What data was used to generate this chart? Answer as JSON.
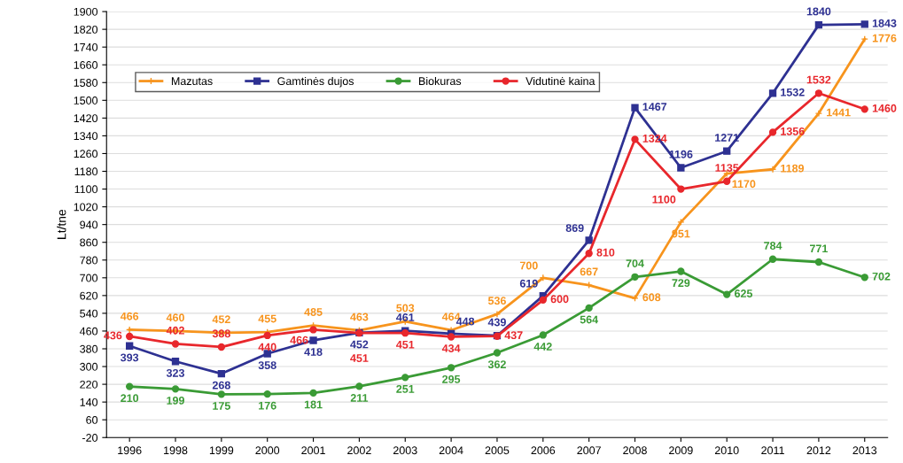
{
  "chart_data": {
    "type": "line",
    "ylabel": "Lt/tne",
    "categories": [
      "1996",
      "1998",
      "1999",
      "2000",
      "2001",
      "2002",
      "2003",
      "2004",
      "2005",
      "2006",
      "2007",
      "2008",
      "2009",
      "2010",
      "2011",
      "2012",
      "2013"
    ],
    "series": [
      {
        "name": "Mazutas",
        "color": "#f7941d",
        "marker": "cross",
        "values": [
          466,
          460,
          452,
          455,
          485,
          463,
          503,
          464,
          536,
          700,
          667,
          608,
          951,
          1170,
          1189,
          1441,
          1776
        ]
      },
      {
        "name": "Gamtinės dujos",
        "color": "#2e3192",
        "marker": "square",
        "values": [
          393,
          323,
          268,
          358,
          418,
          452,
          461,
          448,
          439,
          619,
          869,
          1467,
          1196,
          1271,
          1532,
          1840,
          1843
        ]
      },
      {
        "name": "Biokuras",
        "color": "#3a9b35",
        "marker": "circle",
        "values": [
          210,
          199,
          175,
          176,
          181,
          211,
          251,
          295,
          362,
          442,
          564,
          704,
          729,
          625,
          784,
          771,
          702
        ]
      },
      {
        "name": "Vidutinė kaina",
        "color": "#e8272c",
        "marker": "circle",
        "values": [
          436,
          402,
          388,
          440,
          466,
          451,
          451,
          434,
          437,
          600,
          810,
          1324,
          1100,
          1135,
          1356,
          1532,
          1460
        ]
      }
    ],
    "ylim": [
      -20,
      1900
    ],
    "yticks": [
      -20,
      60,
      140,
      220,
      300,
      380,
      460,
      540,
      620,
      700,
      780,
      860,
      940,
      1020,
      1100,
      1180,
      1260,
      1340,
      1420,
      1500,
      1580,
      1660,
      1740,
      1820,
      1900
    ],
    "grid": "y",
    "legend": "top left",
    "data_labels": true,
    "line_style": "solid"
  }
}
